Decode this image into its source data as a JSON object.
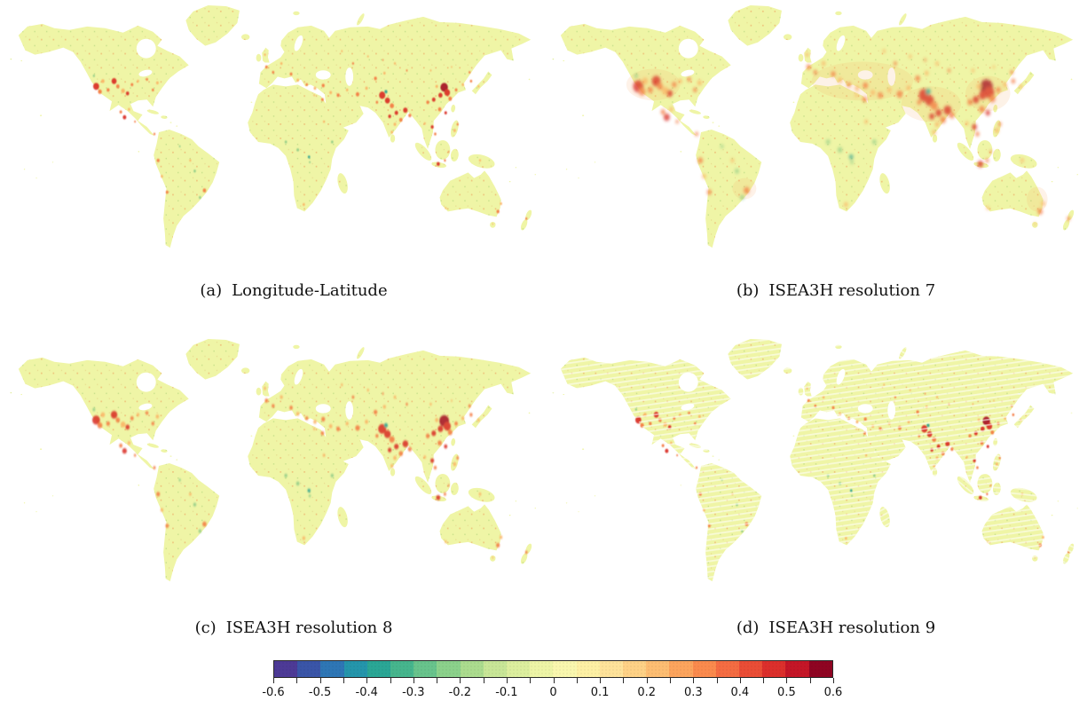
{
  "figure": {
    "panels": [
      {
        "id": "a",
        "caption_label": "(a)",
        "caption_text": "Longitude-Latitude"
      },
      {
        "id": "b",
        "caption_label": "(b)",
        "caption_text": "ISEA3H resolution 7"
      },
      {
        "id": "c",
        "caption_label": "(c)",
        "caption_text": "ISEA3H resolution 8"
      },
      {
        "id": "d",
        "caption_label": "(d)",
        "caption_text": "ISEA3H resolution 9"
      }
    ],
    "colorbar": {
      "min": -0.6,
      "max": 0.6,
      "step": 0.05,
      "tick_labels": [
        "-0.6",
        "-0.5",
        "-0.4",
        "-0.3",
        "-0.2",
        "-0.1",
        "0",
        "0.1",
        "0.2",
        "0.3",
        "0.4",
        "0.5",
        "0.6"
      ],
      "cell_colors": [
        "#4d3a96",
        "#3a55a8",
        "#2e76b5",
        "#2495ab",
        "#2aa695",
        "#46b58d",
        "#68c38c",
        "#8bd18b",
        "#abdb8e",
        "#c8e697",
        "#dcee9e",
        "#edf4a6",
        "#f9f7ae",
        "#fdf0a4",
        "#fee29a",
        "#fed186",
        "#fdbd72",
        "#fca45d",
        "#fa8a4d",
        "#f46c42",
        "#ea4d36",
        "#dc2f2c",
        "#c41627",
        "#8f0422"
      ]
    },
    "map": {
      "land_color": "#eff5a6",
      "ocean_color": "#ffffff",
      "wash_color": "#f6a65a",
      "hotspot_colors": {
        "red": "#d92a20",
        "red2": "#a50d24",
        "orange": "#f4783f",
        "orange2": "#fbb264",
        "teal": "#2ba08f",
        "green": "#8ecb86"
      },
      "hotspots": [
        [
          62,
          53,
          2.0,
          "red"
        ],
        [
          64.5,
          56,
          1.3,
          "orange"
        ],
        [
          66.5,
          50,
          1.1,
          "orange2"
        ],
        [
          70,
          55,
          1.0,
          "orange"
        ],
        [
          74,
          50,
          1.7,
          "red"
        ],
        [
          76.5,
          53,
          1.1,
          "orange"
        ],
        [
          80,
          55.5,
          1.3,
          "orange2"
        ],
        [
          83,
          57,
          1.1,
          "red"
        ],
        [
          86,
          52,
          0.9,
          "orange"
        ],
        [
          90,
          50,
          0.8,
          "orange2"
        ],
        [
          96,
          49,
          0.8,
          "orange"
        ],
        [
          103,
          51,
          0.9,
          "orange2"
        ],
        [
          100,
          55,
          0.8,
          "orange"
        ],
        [
          60.5,
          47,
          0.7,
          "green"
        ],
        [
          81,
          70.5,
          1.2,
          "red"
        ],
        [
          78.5,
          67.5,
          0.9,
          "orange"
        ],
        [
          84,
          66,
          0.8,
          "orange2"
        ],
        [
          88,
          73,
          0.6,
          "orange"
        ],
        [
          101,
          80,
          0.7,
          "orange"
        ],
        [
          103.5,
          95,
          1.0,
          "orange"
        ],
        [
          106,
          104,
          0.8,
          "orange2"
        ],
        [
          109.5,
          113,
          0.9,
          "orange"
        ],
        [
          134.5,
          112,
          1.1,
          "orange"
        ],
        [
          131.5,
          116,
          0.8,
          "green"
        ],
        [
          128,
          101,
          0.8,
          "green"
        ],
        [
          125,
          95,
          0.7,
          "orange2"
        ],
        [
          118,
          87,
          0.6,
          "green"
        ],
        [
          176,
          42,
          0.9,
          "orange"
        ],
        [
          175,
          35,
          0.7,
          "orange2"
        ],
        [
          180.5,
          45,
          0.8,
          "orange"
        ],
        [
          186,
          40,
          0.8,
          "orange2"
        ],
        [
          192.5,
          46,
          0.9,
          "orange"
        ],
        [
          197,
          49.5,
          0.9,
          "orange2"
        ],
        [
          203,
          52,
          0.8,
          "orange"
        ],
        [
          208.5,
          54,
          0.9,
          "orange2"
        ],
        [
          214,
          52.5,
          1.0,
          "orange"
        ],
        [
          219,
          56.5,
          0.9,
          "orange2"
        ],
        [
          224,
          58,
          1.0,
          "orange"
        ],
        [
          230,
          55,
          0.8,
          "orange2"
        ],
        [
          237,
          57.5,
          1.2,
          "orange"
        ],
        [
          243,
          54,
          0.9,
          "orange2"
        ],
        [
          249,
          48.5,
          1.0,
          "orange"
        ],
        [
          255,
          45.5,
          0.8,
          "orange2"
        ],
        [
          226.5,
          33,
          0.6,
          "orange2"
        ],
        [
          234,
          40,
          0.7,
          "orange"
        ],
        [
          213.5,
          60.5,
          0.9,
          "orange"
        ],
        [
          208,
          58,
          0.6,
          "orange2"
        ],
        [
          189,
          84.5,
          0.8,
          "green"
        ],
        [
          197,
          89,
          0.9,
          "green"
        ],
        [
          204.5,
          93,
          0.8,
          "teal"
        ],
        [
          220,
          84.5,
          0.8,
          "green"
        ],
        [
          214.5,
          73,
          0.7,
          "orange2"
        ],
        [
          201,
          120,
          0.8,
          "orange2"
        ],
        [
          205,
          96,
          0.6,
          "green"
        ],
        [
          253.5,
          58,
          2.1,
          "red"
        ],
        [
          257,
          61,
          1.7,
          "red"
        ],
        [
          256,
          56,
          1.0,
          "teal"
        ],
        [
          260,
          64,
          1.4,
          "orange"
        ],
        [
          263,
          68,
          1.2,
          "red"
        ],
        [
          266,
          72,
          1.1,
          "orange"
        ],
        [
          262,
          74.5,
          0.9,
          "orange2"
        ],
        [
          258.5,
          70,
          1.0,
          "red"
        ],
        [
          269,
          66.5,
          1.5,
          "red"
        ],
        [
          272,
          69.5,
          1.0,
          "orange"
        ],
        [
          260,
          79,
          0.8,
          "orange2"
        ],
        [
          250,
          62,
          0.8,
          "orange"
        ],
        [
          295,
          53.5,
          2.5,
          "red2"
        ],
        [
          297,
          56.5,
          1.9,
          "red"
        ],
        [
          292.5,
          58,
          1.4,
          "red"
        ],
        [
          299,
          60,
          1.2,
          "orange"
        ],
        [
          288,
          60.5,
          1.2,
          "red"
        ],
        [
          284,
          62,
          1.0,
          "orange"
        ],
        [
          292,
          66,
          1.1,
          "orange"
        ],
        [
          296,
          68,
          0.9,
          "red"
        ],
        [
          303,
          55,
          0.9,
          "orange"
        ],
        [
          307.5,
          52,
          0.8,
          "orange2"
        ],
        [
          313,
          50,
          0.8,
          "orange"
        ],
        [
          318,
          53,
          0.7,
          "orange2"
        ],
        [
          312,
          45,
          0.7,
          "orange"
        ],
        [
          290,
          53,
          0.9,
          "orange2"
        ],
        [
          287,
          76,
          1.0,
          "red"
        ],
        [
          289,
          80,
          0.8,
          "orange"
        ],
        [
          282,
          74,
          0.7,
          "orange2"
        ],
        [
          291,
          97,
          1.1,
          "red"
        ],
        [
          295.5,
          95,
          0.7,
          "orange"
        ],
        [
          302,
          78,
          0.9,
          "orange2"
        ],
        [
          304,
          74.5,
          0.7,
          "orange"
        ],
        [
          319,
          95,
          0.7,
          "orange2"
        ],
        [
          298,
          90,
          0.5,
          "orange"
        ],
        [
          331,
          124,
          1.0,
          "orange"
        ],
        [
          333,
          119.5,
          0.8,
          "orange2"
        ],
        [
          296,
          122,
          0.6,
          "orange2"
        ],
        [
          350,
          128,
          0.7,
          "orange"
        ],
        [
          327.5,
          131,
          0.5,
          "orange2"
        ],
        [
          262,
          40,
          0.7,
          "orange2"
        ],
        [
          270,
          44,
          0.6,
          "orange"
        ],
        [
          286,
          44,
          0.6,
          "orange2"
        ],
        [
          300,
          42,
          0.5,
          "orange2"
        ],
        [
          244,
          36,
          0.6,
          "orange2"
        ],
        [
          254,
          38,
          0.5,
          "orange"
        ]
      ]
    },
    "panel_styles": {
      "a": {
        "dot_scale": 1.0,
        "blur": 0.35,
        "opacity": 0.9,
        "wash": false,
        "stripes": false
      },
      "b": {
        "dot_scale": 1.75,
        "blur": 1.0,
        "opacity": 0.75,
        "wash": true,
        "stripes": false
      },
      "c": {
        "dot_scale": 1.3,
        "blur": 0.55,
        "opacity": 0.85,
        "wash": false,
        "stripes": false
      },
      "d": {
        "dot_scale": 1.0,
        "blur": 0.35,
        "opacity": 0.9,
        "wash": false,
        "stripes": true
      }
    }
  }
}
